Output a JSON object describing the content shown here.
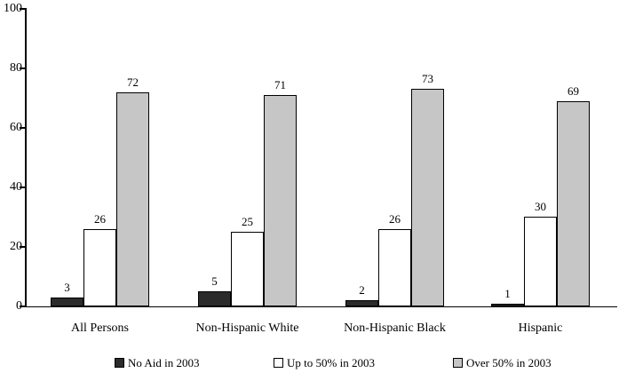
{
  "chart_data": {
    "type": "bar",
    "title": "",
    "categories": [
      "All Persons",
      "Non-Hispanic White",
      "Non-Hispanic Black",
      "Hispanic"
    ],
    "series": [
      {
        "name": "No Aid in 2003",
        "color": "#2b2b2b",
        "values": [
          3,
          5,
          2,
          1
        ]
      },
      {
        "name": "Up to 50% in 2003",
        "color": "#ffffff",
        "values": [
          26,
          25,
          26,
          30
        ]
      },
      {
        "name": "Over 50% in 2003",
        "color": "#c6c6c6",
        "values": [
          72,
          71,
          73,
          69
        ]
      }
    ],
    "xlabel": "",
    "ylabel": "",
    "ylim": [
      0,
      100
    ],
    "yticks": [
      0,
      20,
      40,
      60,
      80,
      100
    ],
    "grid": false,
    "legend_position": "bottom",
    "bar_value_labels": true
  },
  "colors": {
    "background": "#ffffff",
    "axis": "#000000",
    "bar_border": "#000000",
    "text": "#000000"
  }
}
